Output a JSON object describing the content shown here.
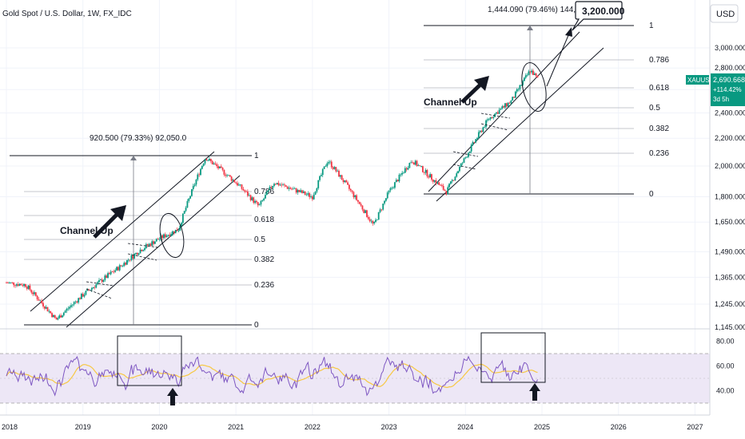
{
  "header": {
    "symbol_title": "Gold Spot / U.S. Dollar, 1W, FX_IDC",
    "currency_button": "USD"
  },
  "price_badge": {
    "ticker": "XAUUSD",
    "price": "2,690.668",
    "change": "+114.42%",
    "countdown": "3d 5h"
  },
  "colors": {
    "bull": "#089981",
    "bear": "#f23645",
    "rsi_line": "#7e57c2",
    "rsi_ma": "#f7c843",
    "rsi_band": "#ede7f6",
    "ink": "#131722"
  },
  "chart_data": [
    {
      "type": "candlestick",
      "title": "Gold Spot / U.S. Dollar, 1W, FX_IDC",
      "x_ticks": [
        "2018",
        "2019",
        "2020",
        "2021",
        "2022",
        "2023",
        "2024",
        "2025",
        "2026",
        "2027"
      ],
      "y_ticks": [
        "3,000.000",
        "2,800.000",
        "2,600.000",
        "2,400.000",
        "2,200.000",
        "2,000.000",
        "1,800.000",
        "1,650.000",
        "1,490.000",
        "1,365.000",
        "1,245.000",
        "1,145.000"
      ],
      "price_path_approx": [
        {
          "x": "2018.00",
          "y": 1340
        },
        {
          "x": "2018.25",
          "y": 1330
        },
        {
          "x": "2018.65",
          "y": 1180
        },
        {
          "x": "2019.00",
          "y": 1285
        },
        {
          "x": "2019.50",
          "y": 1420
        },
        {
          "x": "2019.75",
          "y": 1500
        },
        {
          "x": "2020.00",
          "y": 1560
        },
        {
          "x": "2020.25",
          "y": 1610
        },
        {
          "x": "2020.60",
          "y": 2060
        },
        {
          "x": "2021.00",
          "y": 1890
        },
        {
          "x": "2021.30",
          "y": 1740
        },
        {
          "x": "2021.50",
          "y": 1890
        },
        {
          "x": "2022.00",
          "y": 1800
        },
        {
          "x": "2022.20",
          "y": 2040
        },
        {
          "x": "2022.80",
          "y": 1630
        },
        {
          "x": "2023.00",
          "y": 1830
        },
        {
          "x": "2023.30",
          "y": 2040
        },
        {
          "x": "2023.75",
          "y": 1830
        },
        {
          "x": "2024.00",
          "y": 2060
        },
        {
          "x": "2024.30",
          "y": 2350
        },
        {
          "x": "2024.60",
          "y": 2500
        },
        {
          "x": "2024.85",
          "y": 2780
        },
        {
          "x": "2024.95",
          "y": 2690
        }
      ],
      "annotations": [
        {
          "text": "Channel Up"
        },
        {
          "text": "920.500 (79.33%) 92,050.0"
        },
        {
          "text": "1,444.090 (79.46%) 144,409.0"
        },
        {
          "text": "3,200.000"
        }
      ],
      "fib_levels_2020": [
        "1",
        "0.786",
        "0.618",
        "0.5",
        "0.382",
        "0.236",
        "0"
      ],
      "fib_levels_2024": [
        "1",
        "0.786",
        "0.618",
        "0.5",
        "0.382",
        "0.236",
        "0"
      ]
    },
    {
      "type": "line",
      "title": "",
      "series": [],
      "y_ticks": [
        "80.00",
        "60.00",
        "40.00"
      ],
      "ylim": [
        20,
        90
      ],
      "band": [
        30,
        70
      ]
    }
  ]
}
